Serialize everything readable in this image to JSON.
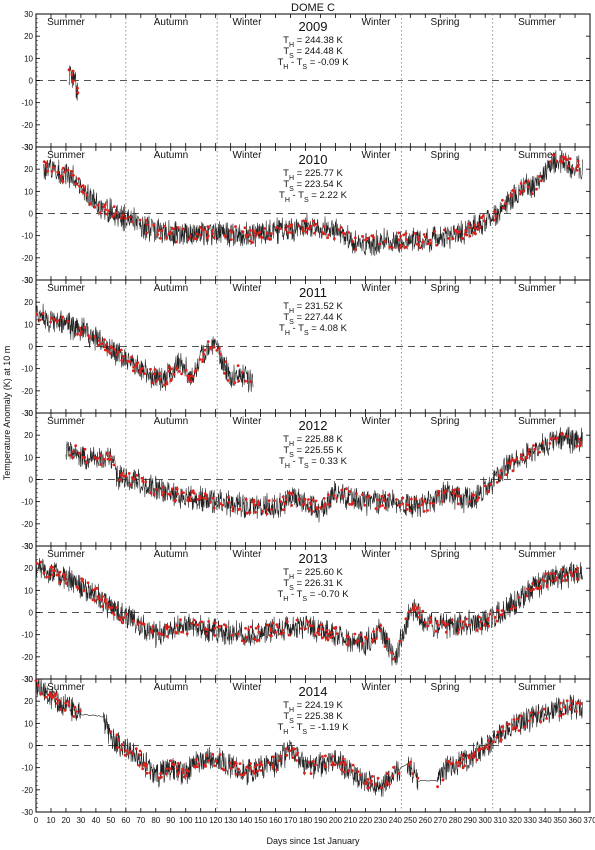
{
  "figure": {
    "title": "DOME C",
    "xlabel": "Days since 1st January",
    "ylabel": "Temperature Anomaly (K) at 10 m"
  },
  "chart_data": [
    {
      "type": "line",
      "year": "2009",
      "TH": "Tₕ = 244.38 K",
      "TS": "Tₛ = 244.48 K",
      "diff": "Tₕ - Tₛ = -0.09 K",
      "seasons": [
        "Summer",
        "Autumn",
        "Winter",
        "Winter",
        "Spring",
        "Summer"
      ],
      "xlim": [
        0,
        370
      ],
      "ylim": [
        -30,
        30
      ],
      "segments": [
        [
          22,
          28,
          5,
          0
        ]
      ],
      "anchors": [
        [
          22,
          3
        ],
        [
          24,
          2
        ],
        [
          26,
          0
        ],
        [
          28,
          -5
        ]
      ]
    },
    {
      "type": "line",
      "year": "2010",
      "TH": "Tₕ = 225.77 K",
      "TS": "Tₛ = 223.54 K",
      "diff": "Tₕ - Tₛ = 2.22 K",
      "seasons": [
        "Summer",
        "Autumn",
        "Winter",
        "Winter",
        "Spring",
        "Summer"
      ],
      "xlim": [
        0,
        370
      ],
      "ylim": [
        -30,
        30
      ],
      "segments": [
        [
          5,
          365,
          5,
          0
        ]
      ],
      "anchors": [
        [
          5,
          20
        ],
        [
          15,
          18
        ],
        [
          25,
          16
        ],
        [
          35,
          8
        ],
        [
          45,
          2
        ],
        [
          60,
          -2
        ],
        [
          80,
          -8
        ],
        [
          100,
          -10
        ],
        [
          120,
          -8
        ],
        [
          140,
          -10
        ],
        [
          160,
          -8
        ],
        [
          180,
          -6
        ],
        [
          200,
          -8
        ],
        [
          215,
          -14
        ],
        [
          240,
          -12
        ],
        [
          260,
          -12
        ],
        [
          280,
          -10
        ],
        [
          300,
          -4
        ],
        [
          315,
          5
        ],
        [
          325,
          12
        ],
        [
          335,
          12
        ],
        [
          345,
          24
        ],
        [
          355,
          22
        ],
        [
          365,
          20
        ]
      ]
    },
    {
      "type": "line",
      "year": "2011",
      "TH": "Tₕ = 231.52 K",
      "TS": "Tₛ = 227.44 K",
      "diff": "Tₕ - Tₛ = 4.08 K",
      "seasons": [
        "Summer",
        "Autumn",
        "Winter",
        "Winter",
        "Spring",
        "Summer"
      ],
      "xlim": [
        0,
        370
      ],
      "ylim": [
        -30,
        30
      ],
      "segments": [
        [
          0,
          145,
          5,
          0
        ]
      ],
      "anchors": [
        [
          0,
          15
        ],
        [
          10,
          12
        ],
        [
          20,
          10
        ],
        [
          30,
          8
        ],
        [
          40,
          4
        ],
        [
          50,
          -2
        ],
        [
          60,
          -6
        ],
        [
          70,
          -10
        ],
        [
          80,
          -14
        ],
        [
          85,
          -15
        ],
        [
          90,
          -12
        ],
        [
          95,
          -8
        ],
        [
          100,
          -10
        ],
        [
          105,
          -14
        ],
        [
          110,
          -5
        ],
        [
          115,
          0
        ],
        [
          120,
          2
        ],
        [
          125,
          -8
        ],
        [
          130,
          -14
        ],
        [
          135,
          -12
        ],
        [
          140,
          -14
        ],
        [
          145,
          -16
        ]
      ]
    },
    {
      "type": "line",
      "year": "2012",
      "TH": "Tₕ = 225.88 K",
      "TS": "Tₛ = 225.55 K",
      "diff": "Tₕ - Tₛ = 0.33 K",
      "seasons": [
        "Summer",
        "Autumn",
        "Winter",
        "Winter",
        "Spring",
        "Summer"
      ],
      "xlim": [
        0,
        370
      ],
      "ylim": [
        -30,
        30
      ],
      "segments": [
        [
          20,
          365,
          5,
          0
        ]
      ],
      "anchors": [
        [
          20,
          14
        ],
        [
          30,
          11
        ],
        [
          40,
          10
        ],
        [
          50,
          9
        ],
        [
          55,
          0
        ],
        [
          65,
          0
        ],
        [
          80,
          -4
        ],
        [
          100,
          -8
        ],
        [
          120,
          -10
        ],
        [
          140,
          -12
        ],
        [
          160,
          -12
        ],
        [
          175,
          -8
        ],
        [
          190,
          -14
        ],
        [
          200,
          -6
        ],
        [
          220,
          -10
        ],
        [
          240,
          -10
        ],
        [
          260,
          -12
        ],
        [
          275,
          -6
        ],
        [
          290,
          -10
        ],
        [
          300,
          -4
        ],
        [
          315,
          6
        ],
        [
          330,
          12
        ],
        [
          345,
          18
        ],
        [
          365,
          18
        ]
      ]
    },
    {
      "type": "line",
      "year": "2013",
      "TH": "Tₕ = 225.60 K",
      "TS": "Tₛ = 226.31 K",
      "diff": "Tₕ - Tₛ = -0.70 K",
      "seasons": [
        "Summer",
        "Autumn",
        "Winter",
        "Winter",
        "Spring",
        "Summer"
      ],
      "xlim": [
        0,
        370
      ],
      "ylim": [
        -30,
        30
      ],
      "segments": [
        [
          0,
          365,
          5,
          0
        ]
      ],
      "anchors": [
        [
          0,
          20
        ],
        [
          10,
          18
        ],
        [
          20,
          16
        ],
        [
          30,
          12
        ],
        [
          40,
          8
        ],
        [
          50,
          2
        ],
        [
          60,
          -2
        ],
        [
          80,
          -10
        ],
        [
          100,
          -6
        ],
        [
          120,
          -8
        ],
        [
          140,
          -10
        ],
        [
          160,
          -8
        ],
        [
          180,
          -6
        ],
        [
          200,
          -10
        ],
        [
          220,
          -14
        ],
        [
          230,
          -8
        ],
        [
          240,
          -22
        ],
        [
          250,
          2
        ],
        [
          265,
          -6
        ],
        [
          280,
          -6
        ],
        [
          300,
          -4
        ],
        [
          315,
          2
        ],
        [
          330,
          10
        ],
        [
          345,
          16
        ],
        [
          365,
          18
        ]
      ]
    },
    {
      "type": "line",
      "year": "2014",
      "TH": "Tₕ = 224.19 K",
      "TS": "Tₛ = 225.38 K",
      "diff": "Tₕ - Tₛ = -1.19 K",
      "seasons": [
        "Summer",
        "Autumn",
        "Winter",
        "Winter",
        "Spring",
        "Summer"
      ],
      "xlim": [
        0,
        370
      ],
      "ylim": [
        -30,
        30
      ],
      "segments": [
        [
          0,
          30,
          5,
          0
        ],
        [
          30,
          45,
          0.8,
          1
        ],
        [
          45,
          243,
          5,
          0
        ],
        [
          243,
          248,
          0.8,
          1
        ],
        [
          248,
          255,
          5,
          0
        ],
        [
          255,
          268,
          0.8,
          1
        ],
        [
          268,
          365,
          5,
          0
        ]
      ],
      "anchors": [
        [
          0,
          28
        ],
        [
          10,
          22
        ],
        [
          20,
          18
        ],
        [
          30,
          14
        ],
        [
          45,
          13
        ],
        [
          50,
          4
        ],
        [
          60,
          -2
        ],
        [
          70,
          -6
        ],
        [
          80,
          -14
        ],
        [
          90,
          -10
        ],
        [
          100,
          -12
        ],
        [
          110,
          -6
        ],
        [
          120,
          -6
        ],
        [
          140,
          -12
        ],
        [
          160,
          -8
        ],
        [
          170,
          -2
        ],
        [
          180,
          -10
        ],
        [
          200,
          -6
        ],
        [
          215,
          -14
        ],
        [
          230,
          -18
        ],
        [
          240,
          -12
        ],
        [
          248,
          -8
        ],
        [
          255,
          -16
        ],
        [
          268,
          -16
        ],
        [
          275,
          -10
        ],
        [
          290,
          -6
        ],
        [
          300,
          0
        ],
        [
          315,
          8
        ],
        [
          330,
          12
        ],
        [
          345,
          16
        ],
        [
          365,
          18
        ]
      ]
    }
  ]
}
